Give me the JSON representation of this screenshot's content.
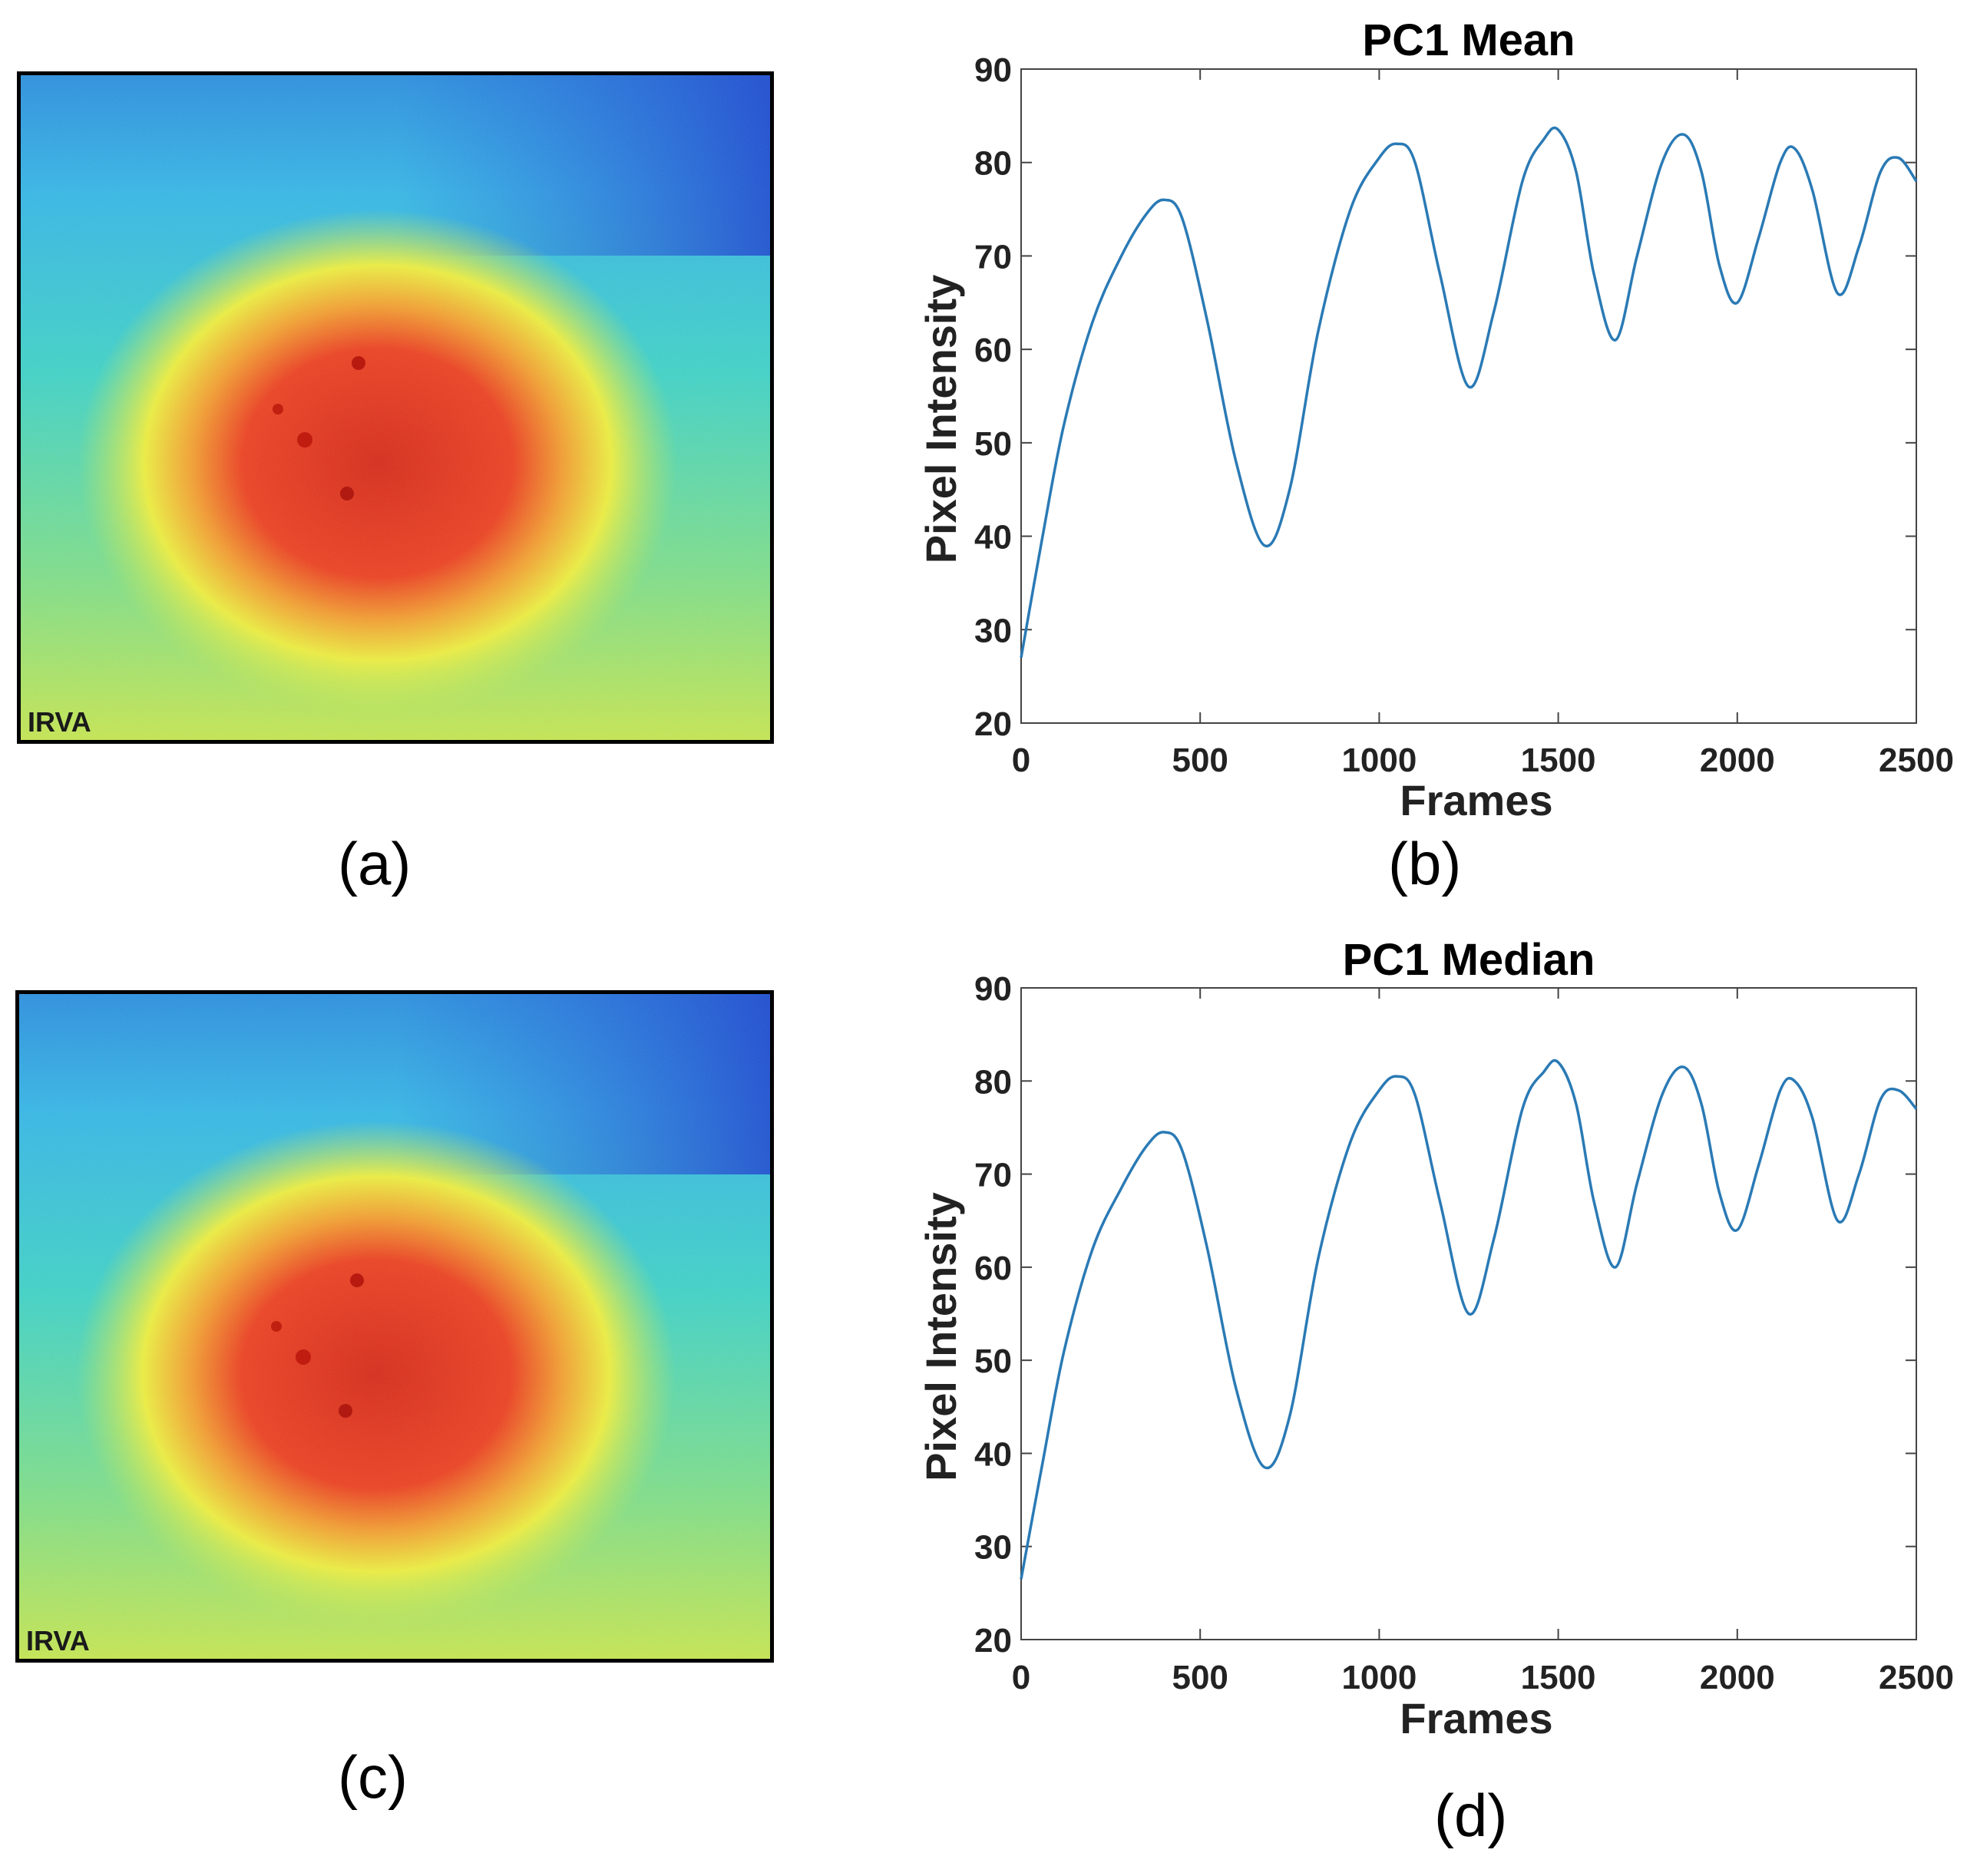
{
  "panels": {
    "a": {
      "label": "(a)",
      "overlay_text": "IRVA",
      "colormap": "jet",
      "image_type": "pseudocolor infrared frame"
    },
    "c": {
      "label": "(c)",
      "overlay_text": "IRVA",
      "colormap": "jet",
      "image_type": "pseudocolor infrared frame"
    },
    "b": {
      "label": "(b)"
    },
    "d": {
      "label": "(d)"
    }
  },
  "colors": {
    "line": "#2a7ab5",
    "axis": "#444444",
    "image_border": "#000000",
    "jet_low": "#1f3fd6",
    "jet_mid": "#3fd6d6",
    "jet_yellow": "#e8f040",
    "jet_high": "#e83a20"
  },
  "chart_data": [
    {
      "id": "b",
      "type": "line",
      "title": "PC1 Mean",
      "xlabel": "Frames",
      "ylabel": "Pixel Intensity",
      "xlim": [
        0,
        2500
      ],
      "ylim": [
        20,
        90
      ],
      "xticks": [
        0,
        500,
        1000,
        1500,
        2000,
        2500
      ],
      "yticks": [
        20,
        30,
        40,
        50,
        60,
        70,
        80,
        90
      ],
      "series": [
        {
          "name": "PC1 Mean",
          "x": [
            0,
            60,
            120,
            200,
            280,
            350,
            400,
            450,
            520,
            600,
            680,
            750,
            830,
            920,
            1000,
            1050,
            1100,
            1170,
            1250,
            1320,
            1400,
            1460,
            1500,
            1550,
            1600,
            1660,
            1720,
            1790,
            1850,
            1900,
            1950,
            2000,
            2060,
            2120,
            2160,
            2210,
            2280,
            2340,
            2400,
            2450,
            2500
          ],
          "y": [
            27,
            40,
            52,
            63,
            70,
            74.5,
            76,
            74,
            63,
            48,
            39,
            45,
            62,
            75,
            80.5,
            82,
            80,
            68,
            56,
            64,
            78,
            82.5,
            83.5,
            79,
            68,
            61,
            70,
            80,
            83,
            79,
            69,
            65,
            72,
            80,
            81.5,
            77,
            66,
            71,
            79,
            80.5,
            78
          ]
        }
      ]
    },
    {
      "id": "d",
      "type": "line",
      "title": "PC1 Median",
      "xlabel": "Frames",
      "ylabel": "Pixel Intensity",
      "xlim": [
        0,
        2500
      ],
      "ylim": [
        20,
        90
      ],
      "xticks": [
        0,
        500,
        1000,
        1500,
        2000,
        2500
      ],
      "yticks": [
        20,
        30,
        40,
        50,
        60,
        70,
        80,
        90
      ],
      "series": [
        {
          "name": "PC1 Median",
          "x": [
            0,
            60,
            120,
            200,
            280,
            350,
            400,
            450,
            520,
            600,
            680,
            750,
            830,
            920,
            1000,
            1050,
            1100,
            1170,
            1250,
            1320,
            1400,
            1460,
            1500,
            1550,
            1600,
            1660,
            1720,
            1790,
            1850,
            1900,
            1950,
            2000,
            2060,
            2120,
            2160,
            2210,
            2280,
            2340,
            2400,
            2450,
            2500
          ],
          "y": [
            26.5,
            39,
            51,
            62,
            68.5,
            73,
            74.5,
            72.5,
            62,
            47,
            38.5,
            44,
            61,
            73.5,
            79,
            80.5,
            78.5,
            67,
            55,
            63,
            77,
            81,
            82,
            77.5,
            67,
            60,
            69,
            78.5,
            81.5,
            77.5,
            68,
            64,
            71,
            79,
            80,
            76,
            65,
            70,
            78,
            79,
            77
          ]
        }
      ]
    }
  ]
}
